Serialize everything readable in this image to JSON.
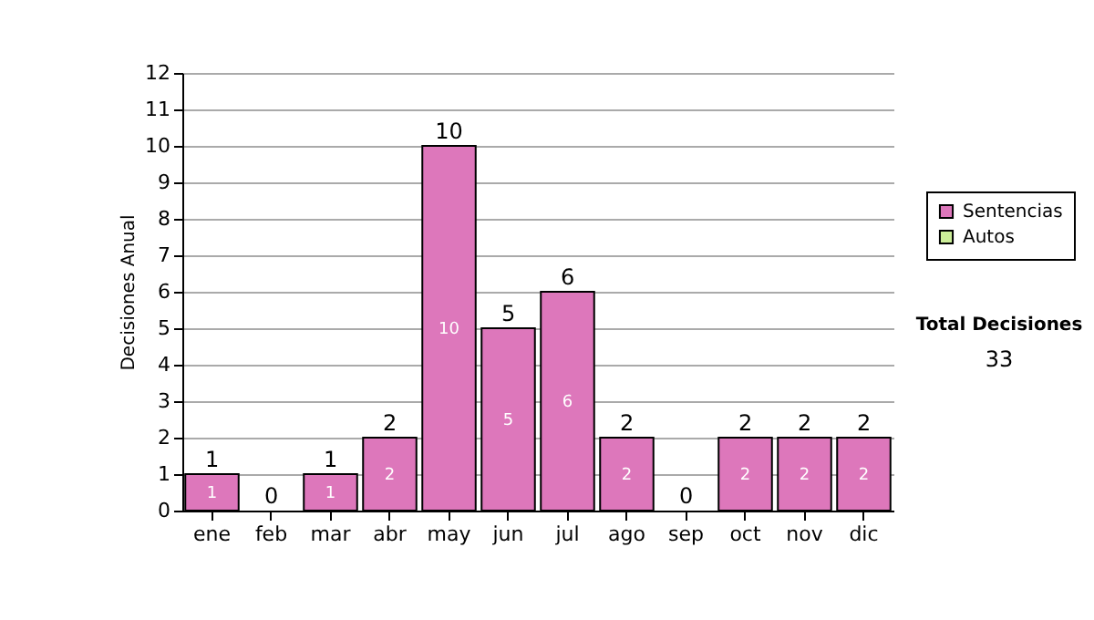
{
  "chart_data": {
    "type": "bar",
    "stacked": true,
    "ylabel": "Decisiones Anual",
    "categories": [
      "ene",
      "feb",
      "mar",
      "abr",
      "may",
      "jun",
      "jul",
      "ago",
      "sep",
      "oct",
      "nov",
      "dic"
    ],
    "series": [
      {
        "name": "Sentencias",
        "color": "#dd77bb",
        "values": [
          1,
          0,
          1,
          2,
          10,
          5,
          6,
          2,
          0,
          2,
          2,
          2
        ],
        "value_labels": [
          "1",
          null,
          "1",
          "2",
          "10",
          "5",
          "6",
          "2",
          null,
          "2",
          "2",
          "2"
        ]
      },
      {
        "name": "Autos",
        "color": "#ccee99",
        "values": [
          0,
          0,
          0,
          0,
          0,
          0,
          0,
          0,
          0,
          0,
          0,
          0
        ]
      }
    ],
    "totals": [
      "1",
      "0",
      "1",
      "2",
      "10",
      "5",
      "6",
      "2",
      "0",
      "2",
      "2",
      "2"
    ],
    "ylim": [
      0,
      12
    ],
    "yticks": [
      0,
      1,
      2,
      3,
      4,
      5,
      6,
      7,
      8,
      9,
      10,
      11,
      12
    ],
    "grid": "y",
    "legend": "right",
    "annotations": [
      "Total Decisiones",
      "33"
    ]
  }
}
